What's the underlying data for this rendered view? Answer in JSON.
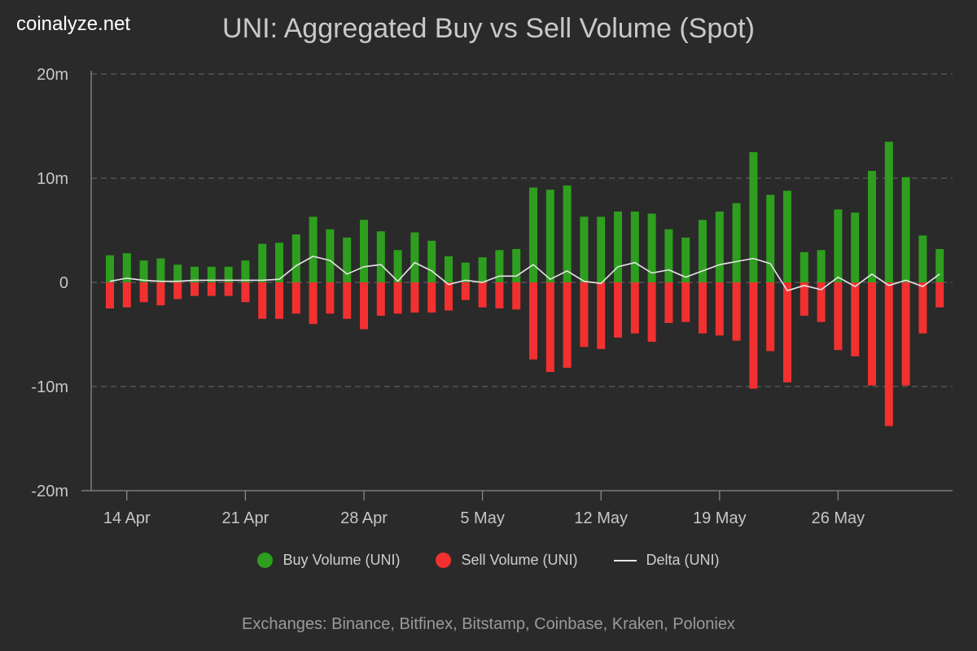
{
  "brand": "coinalyze.net",
  "colors": {
    "background": "#2a2a2a",
    "buy": "#2e9e1e",
    "sell": "#f23030",
    "delta": "#e6e6e6",
    "grid": "#5c5c5c",
    "axis": "#8a8a8a"
  },
  "legend": {
    "buy": "Buy Volume (UNI)",
    "sell": "Sell Volume (UNI)",
    "delta": "Delta (UNI)"
  },
  "footer": "Exchanges: Binance, Bitfinex, Bitstamp, Coinbase, Kraken, Poloniex",
  "chart_data": {
    "type": "bar",
    "title": "UNI: Aggregated Buy vs Sell Volume (Spot)",
    "y_unit": "m",
    "ylim": [
      -20,
      20
    ],
    "y_ticks": [
      20,
      10,
      0,
      -10,
      -20
    ],
    "y_tick_labels": [
      "20m",
      "10m",
      "0",
      "-10m",
      "-20m"
    ],
    "x_tick_labels": [
      "14 Apr",
      "21 Apr",
      "28 Apr",
      "5 May",
      "12 May",
      "19 May",
      "26 May"
    ],
    "x_tick_dates": [
      "2024-04-14",
      "2024-04-21",
      "2024-04-28",
      "2024-05-05",
      "2024-05-12",
      "2024-05-19",
      "2024-05-26"
    ],
    "grid": true,
    "legend_position": "bottom-center",
    "x": [
      "2024-04-13",
      "2024-04-14",
      "2024-04-15",
      "2024-04-16",
      "2024-04-17",
      "2024-04-18",
      "2024-04-19",
      "2024-04-20",
      "2024-04-21",
      "2024-04-22",
      "2024-04-23",
      "2024-04-24",
      "2024-04-25",
      "2024-04-26",
      "2024-04-27",
      "2024-04-28",
      "2024-04-29",
      "2024-04-30",
      "2024-05-01",
      "2024-05-02",
      "2024-05-03",
      "2024-05-04",
      "2024-05-05",
      "2024-05-06",
      "2024-05-07",
      "2024-05-08",
      "2024-05-09",
      "2024-05-10",
      "2024-05-11",
      "2024-05-12",
      "2024-05-13",
      "2024-05-14",
      "2024-05-15",
      "2024-05-16",
      "2024-05-17",
      "2024-05-18",
      "2024-05-19",
      "2024-05-20",
      "2024-05-21",
      "2024-05-22",
      "2024-05-23",
      "2024-05-24",
      "2024-05-25",
      "2024-05-26",
      "2024-05-27",
      "2024-05-28",
      "2024-05-29",
      "2024-05-30",
      "2024-05-31",
      "2024-06-01"
    ],
    "series": [
      {
        "name": "Buy Volume (UNI)",
        "type": "bar",
        "values": [
          2.6,
          2.8,
          2.1,
          2.3,
          1.7,
          1.5,
          1.5,
          1.5,
          2.1,
          3.7,
          3.8,
          4.6,
          6.3,
          5.1,
          4.3,
          6.0,
          4.9,
          3.1,
          4.8,
          4.0,
          2.5,
          1.9,
          2.4,
          3.1,
          3.2,
          9.1,
          8.9,
          9.3,
          6.3,
          6.3,
          6.8,
          6.8,
          6.6,
          5.1,
          4.3,
          6.0,
          6.8,
          7.6,
          12.5,
          8.4,
          8.8,
          2.9,
          3.1,
          7.0,
          6.7,
          10.7,
          13.5,
          10.1,
          4.5,
          3.2
        ]
      },
      {
        "name": "Sell Volume (UNI)",
        "type": "bar",
        "values": [
          -2.5,
          -2.4,
          -1.9,
          -2.2,
          -1.6,
          -1.3,
          -1.3,
          -1.3,
          -1.9,
          -3.5,
          -3.5,
          -3.0,
          -4.0,
          -3.0,
          -3.5,
          -4.5,
          -3.2,
          -3.0,
          -2.9,
          -2.9,
          -2.7,
          -1.7,
          -2.4,
          -2.5,
          -2.6,
          -7.4,
          -8.6,
          -8.2,
          -6.2,
          -6.4,
          -5.3,
          -4.9,
          -5.7,
          -3.9,
          -3.8,
          -4.9,
          -5.1,
          -5.6,
          -10.2,
          -6.6,
          -9.6,
          -3.2,
          -3.8,
          -6.5,
          -7.1,
          -9.9,
          -13.8,
          -9.9,
          -4.9,
          -2.4
        ]
      },
      {
        "name": "Delta (UNI)",
        "type": "line",
        "values": [
          0.1,
          0.4,
          0.2,
          0.1,
          0.1,
          0.2,
          0.2,
          0.2,
          0.2,
          0.2,
          0.3,
          1.6,
          2.5,
          2.1,
          0.8,
          1.5,
          1.7,
          0.1,
          1.9,
          1.1,
          -0.2,
          0.2,
          0.0,
          0.6,
          0.6,
          1.7,
          0.3,
          1.1,
          0.1,
          -0.1,
          1.5,
          1.9,
          0.9,
          1.2,
          0.5,
          1.1,
          1.7,
          2.0,
          2.3,
          1.8,
          -0.8,
          -0.3,
          -0.7,
          0.5,
          -0.4,
          0.8,
          -0.3,
          0.2,
          -0.4,
          0.8
        ]
      }
    ]
  }
}
